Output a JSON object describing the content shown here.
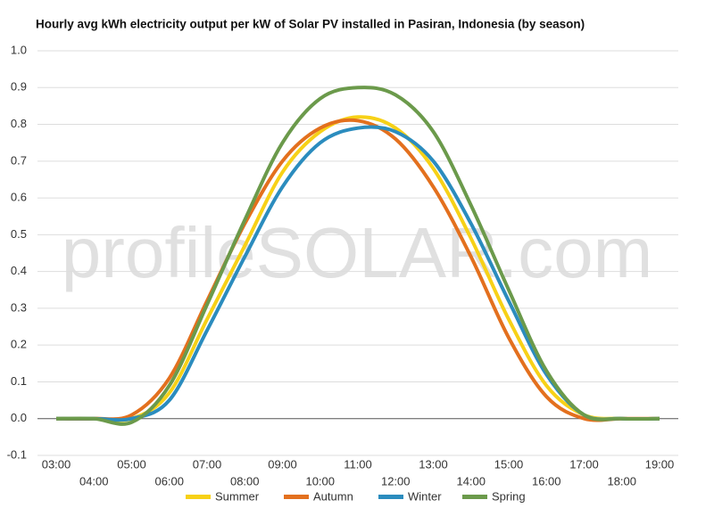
{
  "chart_data": {
    "type": "line",
    "title": "Hourly avg kWh electricity output per kW of Solar PV installed in Pasiran, Indonesia (by season)",
    "watermark": "profileSOLAR.com",
    "categories": [
      "03:00",
      "04:00",
      "05:00",
      "06:00",
      "07:00",
      "08:00",
      "09:00",
      "10:00",
      "11:00",
      "12:00",
      "13:00",
      "14:00",
      "15:00",
      "16:00",
      "17:00",
      "18:00",
      "19:00"
    ],
    "series": [
      {
        "name": "Summer",
        "color": "#f7d117",
        "values": [
          0,
          0,
          0,
          0.07,
          0.27,
          0.47,
          0.67,
          0.78,
          0.82,
          0.79,
          0.68,
          0.49,
          0.27,
          0.09,
          0.01,
          0,
          0
        ]
      },
      {
        "name": "Autumn",
        "color": "#e3701e",
        "values": [
          0,
          0,
          0.01,
          0.11,
          0.32,
          0.53,
          0.7,
          0.79,
          0.81,
          0.76,
          0.63,
          0.44,
          0.22,
          0.06,
          0,
          0,
          0
        ]
      },
      {
        "name": "Winter",
        "color": "#2b8cbe",
        "values": [
          0,
          0,
          0,
          0.05,
          0.24,
          0.44,
          0.63,
          0.75,
          0.79,
          0.78,
          0.7,
          0.53,
          0.32,
          0.12,
          0.01,
          0,
          0
        ]
      },
      {
        "name": "Spring",
        "color": "#6b9a4b",
        "values": [
          0,
          0,
          -0.01,
          0.09,
          0.31,
          0.54,
          0.75,
          0.87,
          0.9,
          0.88,
          0.78,
          0.58,
          0.35,
          0.13,
          0.01,
          0,
          0
        ]
      }
    ],
    "ylim": [
      -0.1,
      1.0
    ],
    "yticks": [
      -0.1,
      {
        "value": 0,
        "label": "0.0"
      },
      0.1,
      0.2,
      0.3,
      0.4,
      0.5,
      0.6,
      0.7,
      0.8,
      0.9,
      {
        "value": 1,
        "label": "1.0"
      }
    ],
    "grid": true
  }
}
